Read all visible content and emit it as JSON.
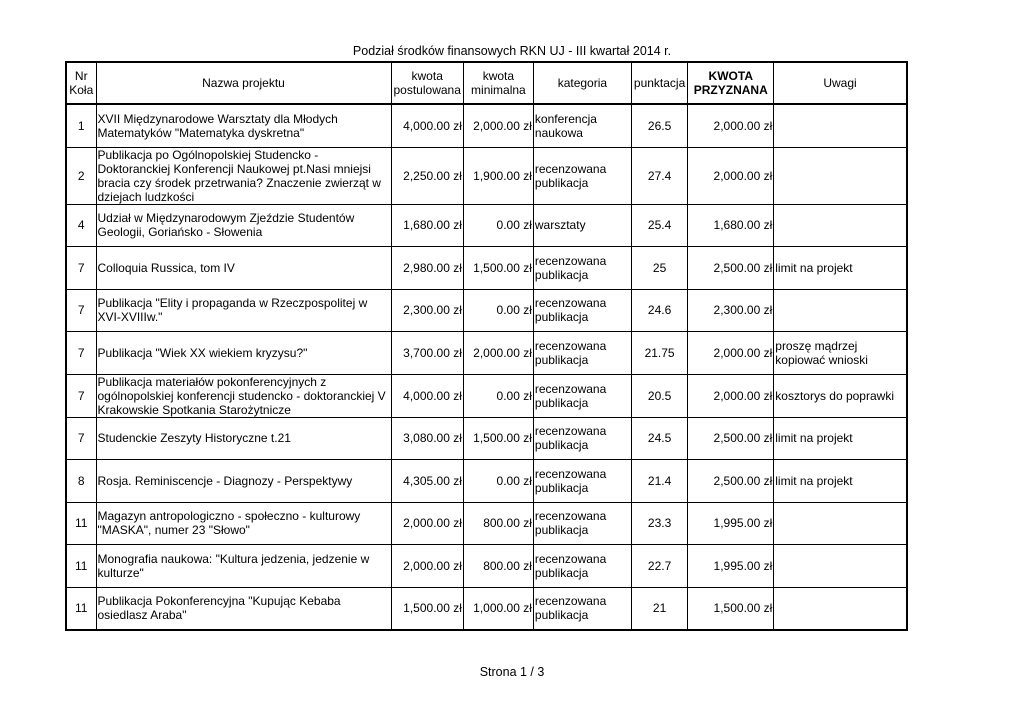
{
  "title": "Podział środków finansowych RKN UJ - III kwartał 2014 r.",
  "headers": {
    "nr": "Nr\nKoła",
    "nazwa": "Nazwa projektu",
    "postulowana": "kwota\npostulowana",
    "minimalna": "kwota\nminimalna",
    "kategoria": "kategoria",
    "punktacja": "punktacja",
    "przyznana": "KWOTA\nPRZYZNANA",
    "uwagi": "Uwagi"
  },
  "rows": [
    {
      "nr": "1",
      "nazwa": "XVII Międzynarodowe Warsztaty dla Młodych Matematyków \"Matematyka dyskretna\"",
      "postulowana": "4,000.00 zł",
      "minimalna": "2,000.00 zł",
      "kategoria": "konferencja naukowa",
      "punktacja": "26.5",
      "przyznana": "2,000.00 zł",
      "uwagi": ""
    },
    {
      "nr": "2",
      "nazwa": "Publikacja po Ogólnopolskiej Studencko - Doktoranckiej Konferencji Naukowej pt.Nasi mniejsi bracia czy środek przetrwania? Znaczenie zwierząt w dziejach ludzkości",
      "postulowana": "2,250.00 zł",
      "minimalna": "1,900.00 zł",
      "kategoria": "recenzowana publikacja",
      "punktacja": "27.4",
      "przyznana": "2,000.00 zł",
      "uwagi": ""
    },
    {
      "nr": "4",
      "nazwa": "Udział w Międzynarodowym Zjeździe Studentów Geologii, Goriańsko - Słowenia",
      "postulowana": "1,680.00 zł",
      "minimalna": "0.00 zł",
      "kategoria": "warsztaty",
      "punktacja": "25.4",
      "przyznana": "1,680.00 zł",
      "uwagi": ""
    },
    {
      "nr": "7",
      "nazwa": "Colloquia Russica, tom IV",
      "postulowana": "2,980.00 zł",
      "minimalna": "1,500.00 zł",
      "kategoria": "recenzowana publikacja",
      "punktacja": "25",
      "przyznana": "2,500.00 zł",
      "uwagi": "limit na projekt"
    },
    {
      "nr": "7",
      "nazwa": "Publikacja \"Elity i propaganda w Rzeczpospolitej w XVI-XVIIIw.\"",
      "postulowana": "2,300.00 zł",
      "minimalna": "0.00 zł",
      "kategoria": "recenzowana publikacja",
      "punktacja": "24.6",
      "przyznana": "2,300.00 zł",
      "uwagi": ""
    },
    {
      "nr": "7",
      "nazwa": "Publikacja \"Wiek XX wiekiem kryzysu?\"",
      "postulowana": "3,700.00 zł",
      "minimalna": "2,000.00 zł",
      "kategoria": "recenzowana publikacja",
      "punktacja": "21.75",
      "przyznana": "2,000.00 zł",
      "uwagi": "proszę mądrzej kopiować wnioski"
    },
    {
      "nr": "7",
      "nazwa": "Publikacja materiałów pokonferencyjnych z ogólnopolskiej konferencji studencko - doktoranckiej V Krakowskie Spotkania Starożytnicze",
      "postulowana": "4,000.00 zł",
      "minimalna": "0.00 zł",
      "kategoria": "recenzowana publikacja",
      "punktacja": "20.5",
      "przyznana": "2,000.00 zł",
      "uwagi": "kosztorys do poprawki"
    },
    {
      "nr": "7",
      "nazwa": "Studenckie Zeszyty Historyczne t.21",
      "postulowana": "3,080.00 zł",
      "minimalna": "1,500.00 zł",
      "kategoria": "recenzowana publikacja",
      "punktacja": "24.5",
      "przyznana": "2,500.00 zł",
      "uwagi": "limit na projekt"
    },
    {
      "nr": "8",
      "nazwa": "Rosja. Reminiscencje - Diagnozy - Perspektywy",
      "postulowana": "4,305.00 zł",
      "minimalna": "0.00 zł",
      "kategoria": "recenzowana publikacja",
      "punktacja": "21.4",
      "przyznana": "2,500.00 zł",
      "uwagi": "limit na projekt"
    },
    {
      "nr": "11",
      "nazwa": "Magazyn antropologiczno - społeczno - kulturowy \"MASKA\", numer 23 \"Słowo\"",
      "postulowana": "2,000.00 zł",
      "minimalna": "800.00 zł",
      "kategoria": "recenzowana publikacja",
      "punktacja": "23.3",
      "przyznana": "1,995.00 zł",
      "uwagi": ""
    },
    {
      "nr": "11",
      "nazwa": "Monografia naukowa: \"Kultura jedzenia, jedzenie w kulturze\"",
      "postulowana": "2,000.00 zł",
      "minimalna": "800.00 zł",
      "kategoria": "recenzowana publikacja",
      "punktacja": "22.7",
      "przyznana": "1,995.00 zł",
      "uwagi": ""
    },
    {
      "nr": "11",
      "nazwa": "Publikacja Pokonferencyjna \"Kupując Kebaba osiedlasz Araba\"",
      "postulowana": "1,500.00 zł",
      "minimalna": "1,000.00 zł",
      "kategoria": "recenzowana publikacja",
      "punktacja": "21",
      "przyznana": "1,500.00 zł",
      "uwagi": ""
    }
  ],
  "footer": "Strona 1 / 3"
}
